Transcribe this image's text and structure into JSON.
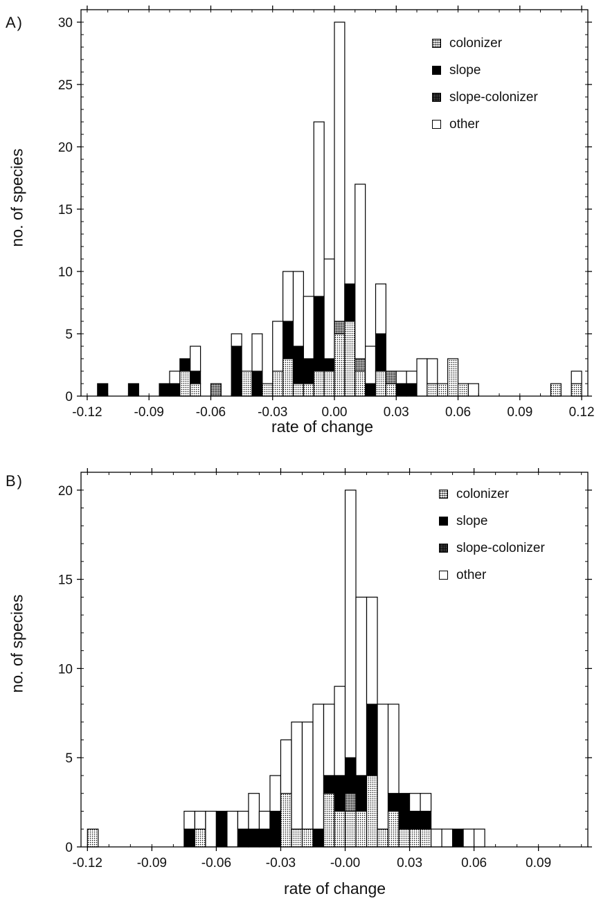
{
  "chart_data": [
    {
      "type": "bar",
      "panel_label": "A)",
      "xlabel": "rate of change",
      "ylabel": "no. of species",
      "xlim": [
        -0.123,
        0.123
      ],
      "ylim": [
        0,
        31
      ],
      "bin_width": 0.005,
      "x_ticks": [
        -0.12,
        -0.09,
        -0.06,
        -0.03,
        0.0,
        0.03,
        0.06,
        0.09,
        0.12
      ],
      "x_tick_labels": [
        "-0.12",
        "-0.09",
        "-0.06",
        "-0.03",
        "0.00",
        "0.03",
        "0.06",
        "0.09",
        "0.12"
      ],
      "y_ticks": [
        0,
        5,
        10,
        15,
        20,
        25,
        30
      ],
      "y_tick_labels": [
        "0",
        "5",
        "10",
        "15",
        "20",
        "25",
        "30"
      ],
      "legend": [
        "colonizer",
        "slope",
        "slope-colonizer",
        "other"
      ],
      "legend_position": "top-right",
      "stack_order": [
        "colonizer",
        "slope-colonizer",
        "slope",
        "other"
      ],
      "bins": [
        -0.12,
        -0.115,
        -0.11,
        -0.105,
        -0.1,
        -0.095,
        -0.09,
        -0.085,
        -0.08,
        -0.075,
        -0.07,
        -0.065,
        -0.06,
        -0.055,
        -0.05,
        -0.045,
        -0.04,
        -0.035,
        -0.03,
        -0.025,
        -0.02,
        -0.015,
        -0.01,
        -0.005,
        0.0,
        0.005,
        0.01,
        0.015,
        0.02,
        0.025,
        0.03,
        0.035,
        0.04,
        0.045,
        0.05,
        0.055,
        0.06,
        0.065,
        0.07,
        0.075,
        0.08,
        0.085,
        0.09,
        0.095,
        0.1,
        0.105,
        0.11,
        0.115
      ],
      "series": [
        {
          "name": "colonizer",
          "values": [
            0,
            0,
            0,
            0,
            0,
            0,
            0,
            0,
            0,
            2,
            1,
            0,
            0,
            0,
            0,
            2,
            0,
            1,
            2,
            3,
            1,
            1,
            2,
            2,
            5,
            6,
            2,
            0,
            2,
            1,
            0,
            0,
            0,
            1,
            1,
            3,
            1,
            0,
            0,
            0,
            0,
            0,
            0,
            0,
            0,
            1,
            0,
            1
          ]
        },
        {
          "name": "slope-colonizer",
          "values": [
            0,
            0,
            0,
            0,
            0,
            0,
            0,
            0,
            0,
            0,
            0,
            0,
            1,
            0,
            0,
            0,
            0,
            0,
            0,
            0,
            0,
            0,
            0,
            0,
            1,
            0,
            1,
            0,
            0,
            1,
            0,
            0,
            0,
            0,
            0,
            0,
            0,
            0,
            0,
            0,
            0,
            0,
            0,
            0,
            0,
            0,
            0,
            0
          ]
        },
        {
          "name": "slope",
          "values": [
            0,
            1,
            0,
            0,
            1,
            0,
            0,
            1,
            1,
            1,
            1,
            0,
            0,
            0,
            4,
            0,
            2,
            0,
            0,
            3,
            3,
            2,
            6,
            1,
            0,
            3,
            0,
            1,
            3,
            0,
            1,
            1,
            0,
            0,
            0,
            0,
            0,
            0,
            0,
            0,
            0,
            0,
            0,
            0,
            0,
            0,
            0,
            0
          ]
        },
        {
          "name": "other",
          "values": [
            0,
            0,
            0,
            0,
            0,
            0,
            0,
            0,
            1,
            0,
            2,
            0,
            0,
            0,
            1,
            0,
            3,
            0,
            4,
            4,
            6,
            5,
            14,
            8,
            24,
            0,
            14,
            3,
            4,
            0,
            1,
            1,
            3,
            2,
            0,
            0,
            0,
            1,
            0,
            0,
            0,
            0,
            0,
            0,
            0,
            0,
            0,
            1
          ]
        }
      ]
    },
    {
      "type": "bar",
      "panel_label": "B)",
      "xlabel": "rate of change",
      "ylabel": "no. of species",
      "xlim": [
        -0.123,
        0.113
      ],
      "ylim": [
        0,
        21
      ],
      "bin_width": 0.005,
      "x_ticks": [
        -0.12,
        -0.09,
        -0.06,
        -0.03,
        0.0,
        0.03,
        0.06,
        0.09
      ],
      "x_tick_labels": [
        "-0.12",
        "-0.09",
        "-0.06",
        "-0.03",
        "-0.00",
        "0.03",
        "0.06",
        "0.09"
      ],
      "y_ticks": [
        0,
        5,
        10,
        15,
        20
      ],
      "y_tick_labels": [
        "0",
        "5",
        "10",
        "15",
        "20"
      ],
      "legend": [
        "colonizer",
        "slope",
        "slope-colonizer",
        "other"
      ],
      "legend_position": "top-right",
      "stack_order": [
        "colonizer",
        "slope-colonizer",
        "slope",
        "other"
      ],
      "bins": [
        -0.12,
        -0.075,
        -0.07,
        -0.065,
        -0.06,
        -0.055,
        -0.05,
        -0.045,
        -0.04,
        -0.035,
        -0.03,
        -0.025,
        -0.02,
        -0.015,
        -0.01,
        -0.005,
        0.0,
        0.005,
        0.01,
        0.015,
        0.02,
        0.025,
        0.03,
        0.035,
        0.04,
        0.045,
        0.05,
        0.055,
        0.06
      ],
      "series": [
        {
          "name": "colonizer",
          "values": [
            1,
            0,
            1,
            0,
            0,
            0,
            0,
            0,
            0,
            0,
            3,
            1,
            1,
            0,
            3,
            2,
            2,
            2,
            4,
            1,
            2,
            1,
            1,
            1,
            0,
            0,
            0,
            0,
            0
          ]
        },
        {
          "name": "slope-colonizer",
          "values": [
            0,
            0,
            0,
            0,
            0,
            0,
            0,
            0,
            0,
            0,
            0,
            0,
            0,
            0,
            0,
            0,
            1,
            0,
            0,
            0,
            0,
            0,
            0,
            0,
            0,
            0,
            0,
            0,
            0
          ]
        },
        {
          "name": "slope",
          "values": [
            0,
            1,
            0,
            0,
            2,
            0,
            1,
            1,
            1,
            2,
            0,
            0,
            0,
            1,
            1,
            2,
            2,
            2,
            4,
            0,
            1,
            2,
            1,
            1,
            0,
            0,
            1,
            0,
            0
          ]
        },
        {
          "name": "other",
          "values": [
            0,
            1,
            1,
            2,
            0,
            2,
            1,
            2,
            1,
            2,
            3,
            6,
            6,
            7,
            4,
            5,
            15,
            10,
            6,
            7,
            5,
            0,
            1,
            1,
            1,
            1,
            0,
            1,
            1
          ]
        }
      ]
    }
  ]
}
